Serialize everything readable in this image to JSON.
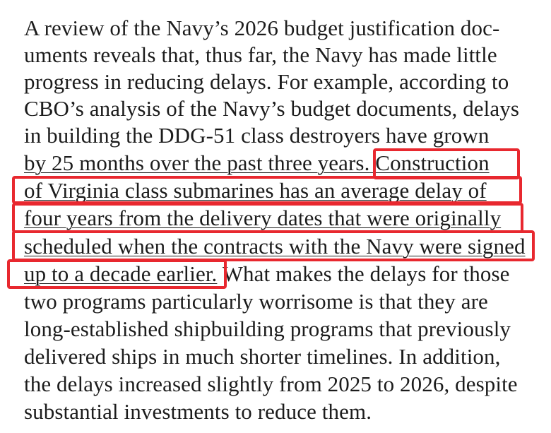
{
  "document": {
    "lines": [
      {
        "text": "A review of the Navy’s 2026 budget justification doc-"
      },
      {
        "text": "uments reveals that, thus far, the Navy has made little"
      },
      {
        "text": "progress in reducing delays. For example, according to"
      },
      {
        "text": "CBO’s analysis of the Navy’s budget documents, delays"
      },
      {
        "text": "in building the DDG-51 class destroyers have grown"
      },
      {
        "pre": "by 25 months over the past three years.",
        "hl": " Construction"
      },
      {
        "hl": "of Virginia class submarines has an average delay of"
      },
      {
        "hl": "four years from the delivery dates that were originally"
      },
      {
        "hl": "scheduled when the contracts with the Navy were signed"
      },
      {
        "hl": "up to a decade earlier.",
        "post": " What makes the delays for those"
      },
      {
        "text": "two programs particularly worrisome is that they are"
      },
      {
        "text": "long-established shipbuilding programs that previously"
      },
      {
        "text": "delivered ships in much shorter timelines. In addition,"
      },
      {
        "text": "the delays increased slightly from 2025 to 2026, despite"
      },
      {
        "text": "substantial investments to reduce them."
      }
    ]
  },
  "highlight": {
    "color": "#e8282f"
  }
}
